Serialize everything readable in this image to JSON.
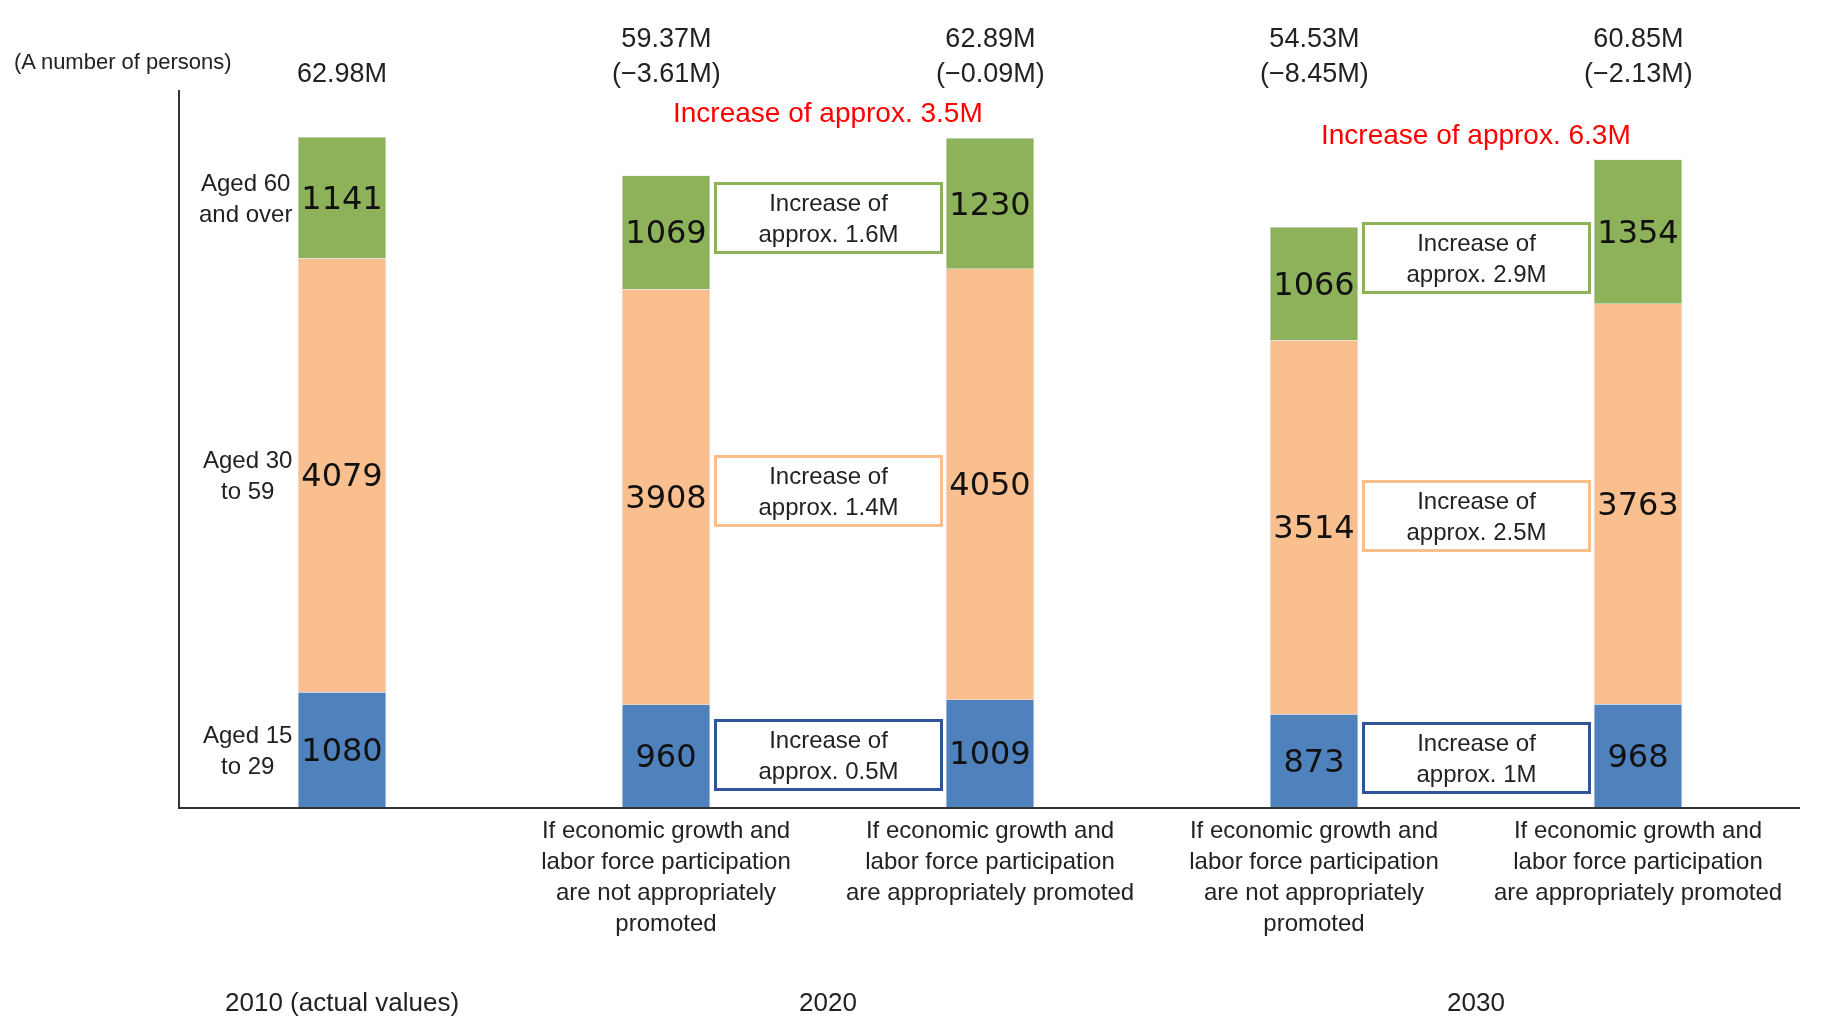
{
  "chart_data": {
    "type": "bar",
    "stacked": true,
    "data_labels": true,
    "legend": false,
    "categories": [
      null,
      "If economic growth and labor force participation are not appropriately promoted",
      "If economic growth and labor force participation are appropriately promoted",
      "If economic growth and labor force participation are not appropriately promoted",
      "If economic growth and labor force participation are appropriately promoted"
    ],
    "series": [
      {
        "name": "Aged 15\nto 29",
        "color": "#4f81bd",
        "values": [
          1080,
          960,
          1009,
          873,
          968
        ]
      },
      {
        "name": "Aged 30\nto 59",
        "color": "#f9bf8f",
        "values": [
          4079,
          3908,
          4050,
          3514,
          3763
        ]
      },
      {
        "name": "Aged 60\nand over",
        "color": "#8eb25a",
        "values": [
          1141,
          1069,
          1230,
          1066,
          1354
        ]
      }
    ],
    "annotations": [
      "(A number of persons)",
      "Increase of approx. 3.5M",
      "Increase of approx. 6.3M",
      "Increase of\napprox. 1.6M",
      "Increase of\napprox. 1.4M",
      "Increase of\napprox. 0.5M",
      "Increase of\napprox. 2.9M",
      "Increase of\napprox. 2.5M",
      "Increase of\napprox. 1M",
      "2010 (actual values)",
      "2020",
      "2030",
      "62.98M",
      "59.37M\n(−3.61M)",
      "62.89M\n(−0.09M)",
      "54.53M\n(−8.45M)",
      "60.85M\n(−2.13M)"
    ]
  }
}
